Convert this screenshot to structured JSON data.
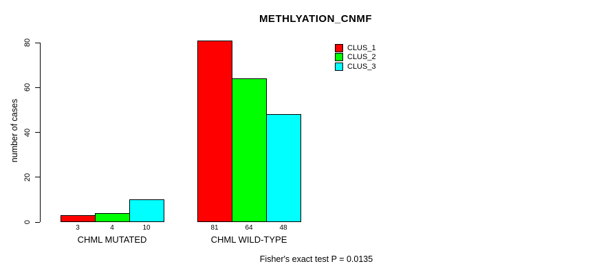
{
  "title": "METHLYATION_CNMF",
  "y_axis_label": "number of cases",
  "footnote": "Fisher's exact test P = 0.0135",
  "legend": {
    "entries": [
      {
        "label": "CLUS_1",
        "color": "#ff0000"
      },
      {
        "label": "CLUS_2",
        "color": "#00ff00"
      },
      {
        "label": "CLUS_3",
        "color": "#00ffff"
      }
    ]
  },
  "chart_data": {
    "type": "bar",
    "title": "METHLYATION_CNMF",
    "xlabel": "",
    "ylabel": "number of cases",
    "ylim": [
      0,
      80
    ],
    "yticks": [
      0,
      20,
      40,
      60,
      80
    ],
    "grid": false,
    "legend_position": "top-right",
    "categories": [
      "CHML MUTATED",
      "CHML WILD-TYPE"
    ],
    "series": [
      {
        "name": "CLUS_1",
        "color": "#ff0000",
        "values": [
          3,
          81
        ]
      },
      {
        "name": "CLUS_2",
        "color": "#00ff00",
        "values": [
          4,
          64
        ]
      },
      {
        "name": "CLUS_3",
        "color": "#00ffff",
        "values": [
          10,
          48
        ]
      }
    ],
    "bar_value_labels": [
      [
        "3",
        "4",
        "10"
      ],
      [
        "81",
        "64",
        "48"
      ]
    ],
    "annotation": "Fisher's exact test P = 0.0135"
  }
}
